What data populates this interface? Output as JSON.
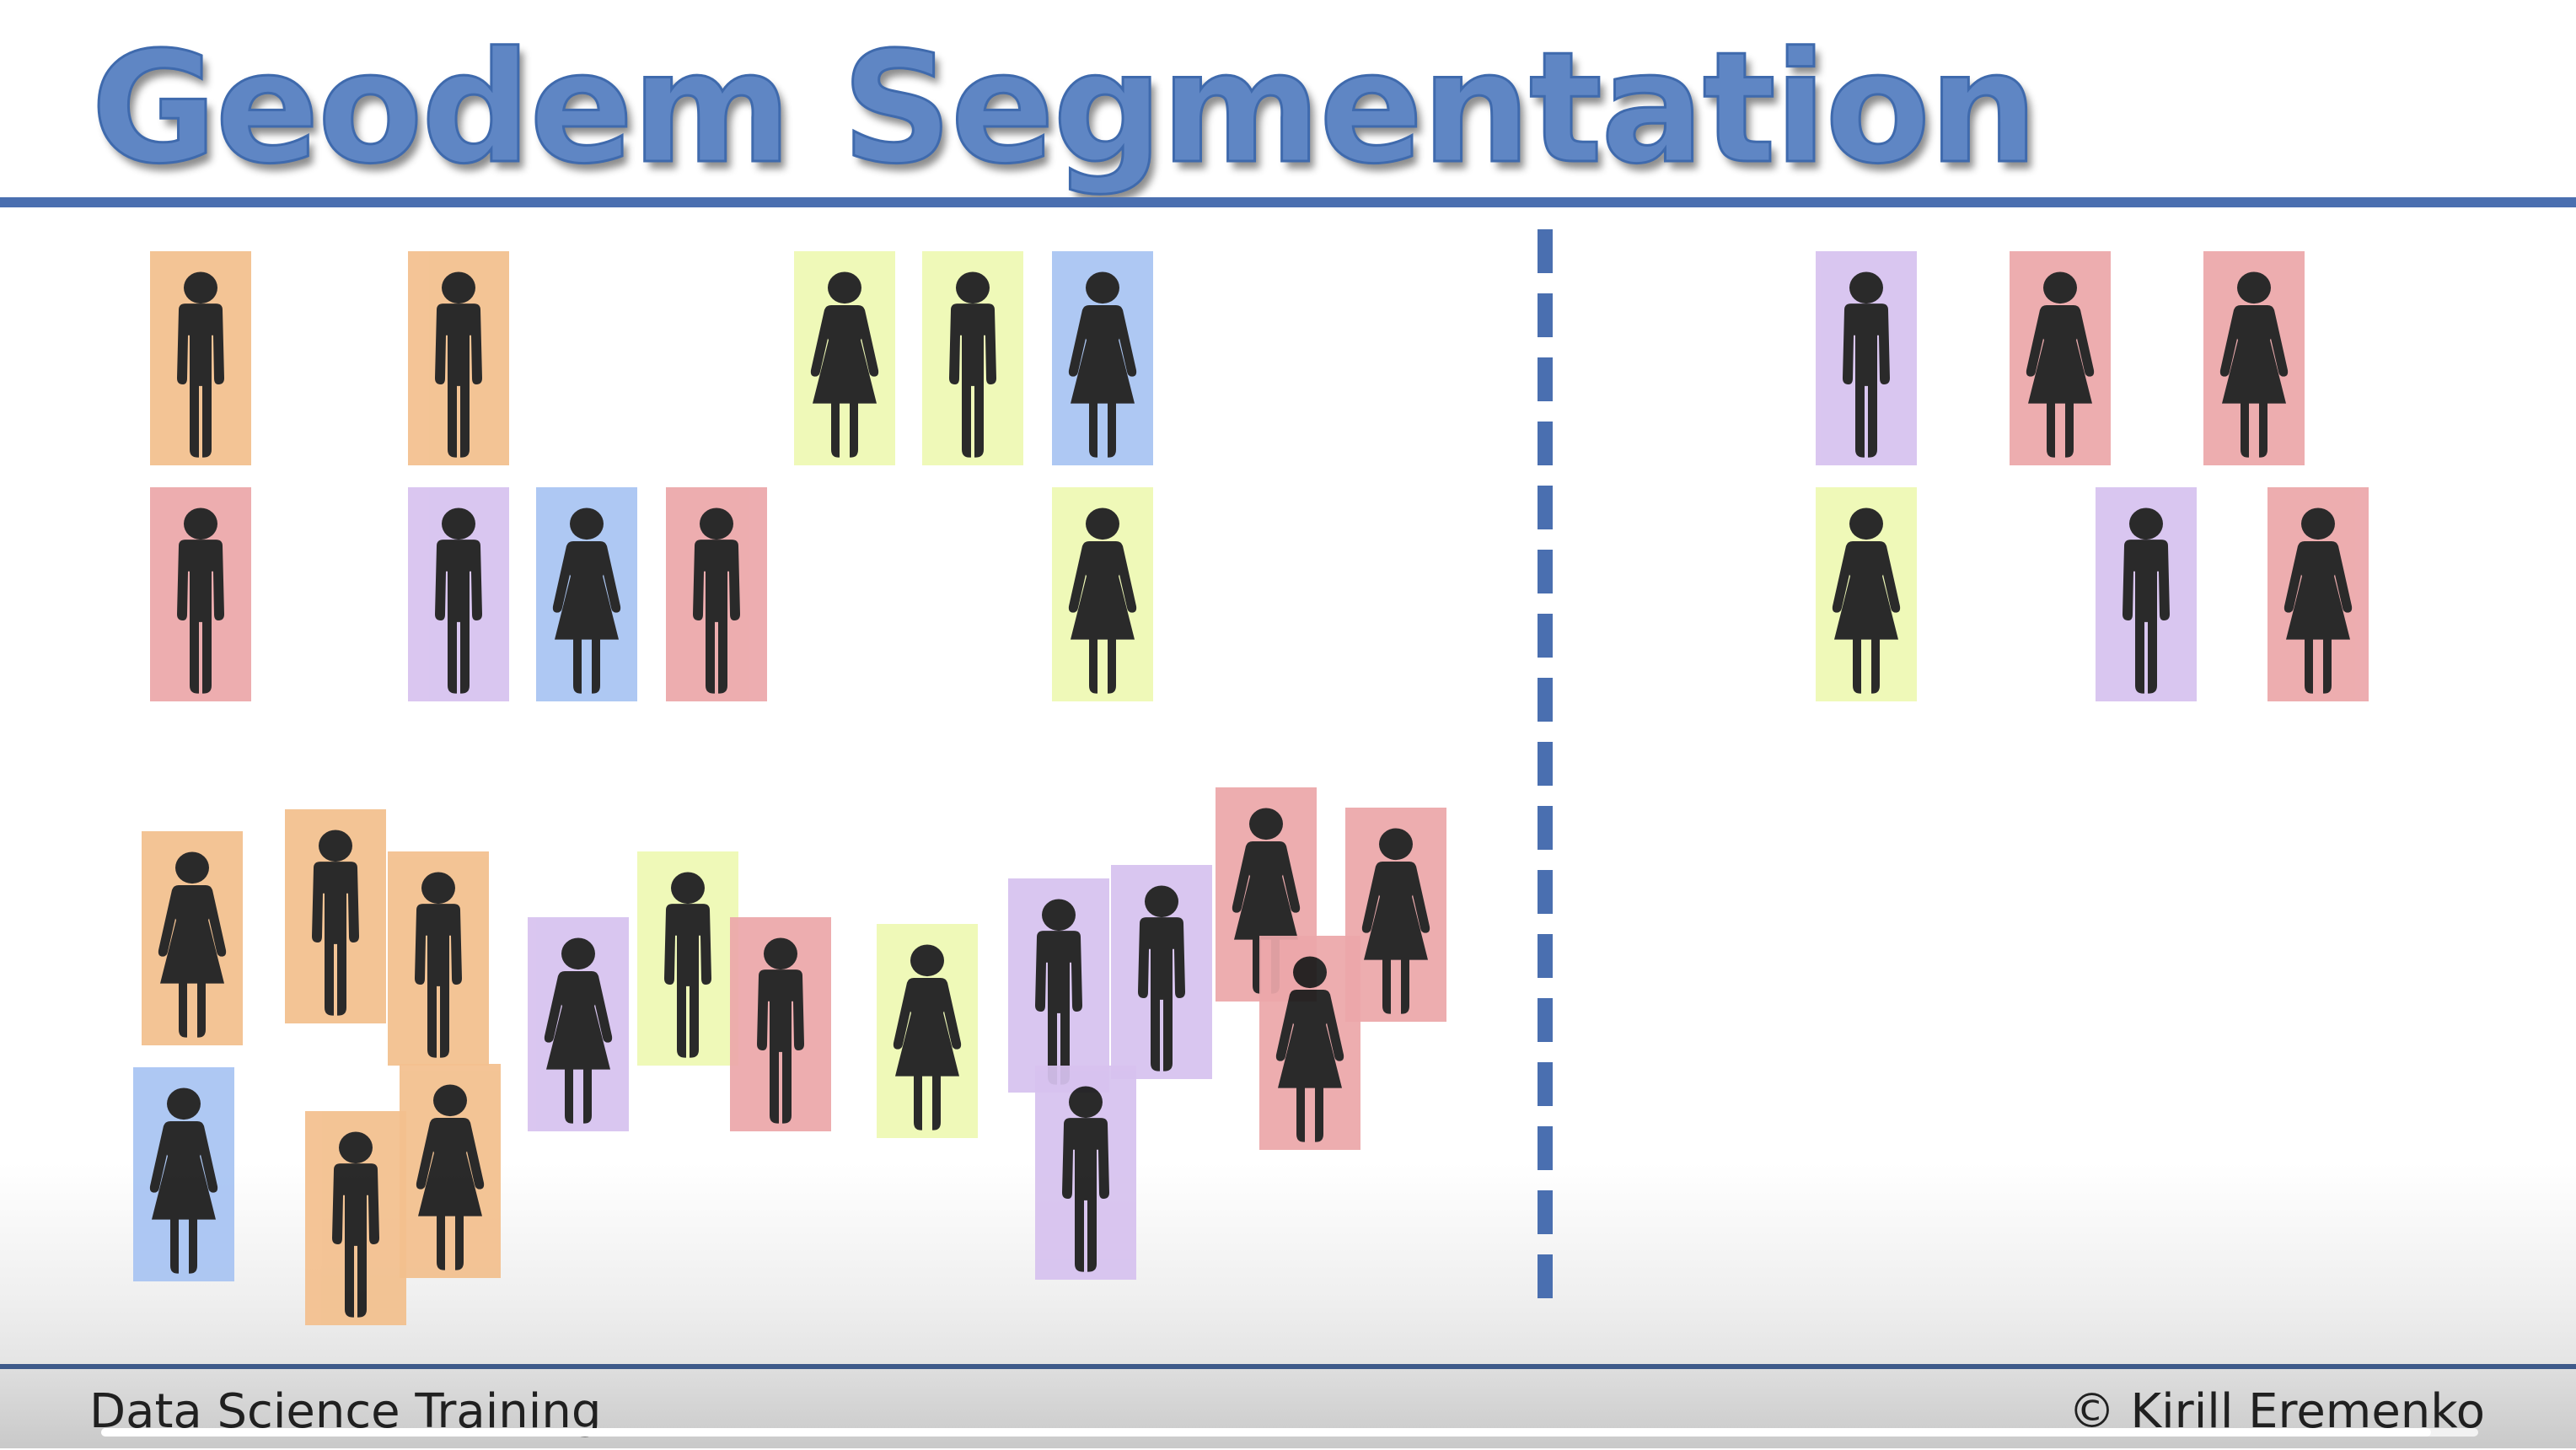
{
  "slide": {
    "title": "Geodem Segmentation",
    "footer_left": "Data Science Training",
    "footer_right": "© Kirill Eremenko"
  },
  "colors": {
    "title": "#5f86c4",
    "rule": "#4a6fb0",
    "figure": "#1a1a1a",
    "orange": "#f3c08e",
    "pink": "#eca7aa",
    "purple": "#d7c2ef",
    "blue": "#a8c4f3",
    "lime": "#eef9b3"
  },
  "video": {
    "progress": 0.98
  },
  "figures": [
    {
      "side": "left",
      "group": "top-row-1",
      "gender": "male",
      "color": "orange"
    },
    {
      "side": "left",
      "group": "top-row-1",
      "gender": "male",
      "color": "orange"
    },
    {
      "side": "left",
      "group": "top-row-1",
      "gender": "female",
      "color": "lime"
    },
    {
      "side": "left",
      "group": "top-row-1",
      "gender": "male",
      "color": "lime"
    },
    {
      "side": "left",
      "group": "top-row-1",
      "gender": "female",
      "color": "blue"
    },
    {
      "side": "left",
      "group": "top-row-2",
      "gender": "male",
      "color": "pink"
    },
    {
      "side": "left",
      "group": "top-row-2",
      "gender": "male",
      "color": "purple"
    },
    {
      "side": "left",
      "group": "top-row-2",
      "gender": "female",
      "color": "blue"
    },
    {
      "side": "left",
      "group": "top-row-2",
      "gender": "male",
      "color": "pink"
    },
    {
      "side": "left",
      "group": "top-row-2",
      "gender": "female",
      "color": "lime"
    },
    {
      "side": "left",
      "group": "crowd",
      "gender": "female",
      "color": "orange"
    },
    {
      "side": "left",
      "group": "crowd",
      "gender": "male",
      "color": "orange"
    },
    {
      "side": "left",
      "group": "crowd",
      "gender": "male",
      "color": "orange"
    },
    {
      "side": "left",
      "group": "crowd",
      "gender": "female",
      "color": "purple"
    },
    {
      "side": "left",
      "group": "crowd",
      "gender": "male",
      "color": "lime"
    },
    {
      "side": "left",
      "group": "crowd",
      "gender": "male",
      "color": "pink"
    },
    {
      "side": "left",
      "group": "crowd",
      "gender": "female",
      "color": "lime"
    },
    {
      "side": "left",
      "group": "crowd",
      "gender": "male",
      "color": "purple"
    },
    {
      "side": "left",
      "group": "crowd",
      "gender": "male",
      "color": "purple"
    },
    {
      "side": "left",
      "group": "crowd",
      "gender": "female",
      "color": "pink"
    },
    {
      "side": "left",
      "group": "crowd",
      "gender": "female",
      "color": "pink"
    },
    {
      "side": "left",
      "group": "crowd",
      "gender": "female",
      "color": "pink"
    },
    {
      "side": "left",
      "group": "crowd",
      "gender": "female",
      "color": "blue"
    },
    {
      "side": "left",
      "group": "crowd",
      "gender": "female",
      "color": "orange"
    },
    {
      "side": "left",
      "group": "crowd",
      "gender": "male",
      "color": "orange"
    },
    {
      "side": "left",
      "group": "crowd",
      "gender": "male",
      "color": "purple"
    },
    {
      "side": "right",
      "group": "top-row-1",
      "gender": "male",
      "color": "purple"
    },
    {
      "side": "right",
      "group": "top-row-1",
      "gender": "female",
      "color": "pink"
    },
    {
      "side": "right",
      "group": "top-row-1",
      "gender": "female",
      "color": "pink"
    },
    {
      "side": "right",
      "group": "top-row-2",
      "gender": "female",
      "color": "lime"
    },
    {
      "side": "right",
      "group": "top-row-2",
      "gender": "male",
      "color": "purple"
    },
    {
      "side": "right",
      "group": "top-row-2",
      "gender": "female",
      "color": "pink"
    }
  ]
}
